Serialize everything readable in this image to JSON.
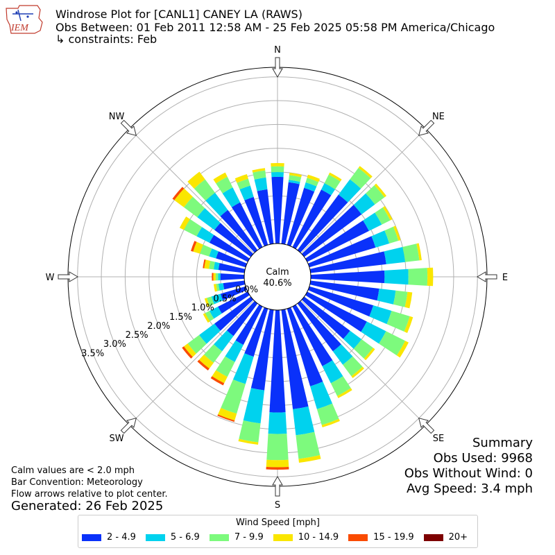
{
  "header": {
    "title": "Windrose Plot for [CANL1] CANEY  LA  (RAWS)",
    "subtitle": "Obs Between: 01 Feb 2011 12:58 AM - 25 Feb 2025 05:58 PM America/Chicago",
    "constraints": "↳ constraints: Feb",
    "logo_text": "IEM"
  },
  "notes": {
    "calm_note": "Calm values are < 2.0 mph",
    "bar_convention": "Bar Convention: Meteorology",
    "flow_arrows": "Flow arrows relative to plot center.",
    "generated": "Generated: 26 Feb 2025"
  },
  "summary": {
    "heading": "Summary",
    "obs_used": "Obs Used: 9968",
    "obs_without_wind": "Obs Without Wind: 0",
    "avg_speed": "Avg Speed: 3.4 mph"
  },
  "legend": {
    "title": "Wind Speed [mph]",
    "items": [
      {
        "label": "2 - 4.9",
        "color": "#0a31fa"
      },
      {
        "label": "5 - 6.9",
        "color": "#00d2ee"
      },
      {
        "label": "7 - 9.9",
        "color": "#7dfa7d"
      },
      {
        "label": "10 - 14.9",
        "color": "#fae600"
      },
      {
        "label": "15 - 19.9",
        "color": "#fa4b00"
      },
      {
        "label": "20+",
        "color": "#7d0000"
      }
    ]
  },
  "chart_data": {
    "type": "windrose",
    "calm_label": "Calm",
    "calm_value": "40.6%",
    "cardinal_labels": [
      "N",
      "NE",
      "E",
      "SE",
      "S",
      "SW",
      "W",
      "NW"
    ],
    "ring_labels": [
      "0.0%",
      "0.5%",
      "1.0%",
      "1.5%",
      "2.0%",
      "2.5%",
      "3.0%",
      "3.5%"
    ],
    "ring_values": [
      0.0,
      0.5,
      1.0,
      1.5,
      2.0,
      2.5,
      3.0,
      3.5
    ],
    "rmax": 3.7,
    "direction_step_deg": 10,
    "speed_bins": [
      "2 - 4.9",
      "5 - 6.9",
      "7 - 9.9",
      "10 - 14.9",
      "15 - 19.9",
      "20+"
    ],
    "directions_deg": [
      0,
      10,
      20,
      30,
      40,
      50,
      60,
      70,
      80,
      90,
      100,
      110,
      120,
      130,
      140,
      150,
      160,
      170,
      180,
      190,
      200,
      210,
      220,
      230,
      240,
      250,
      260,
      270,
      280,
      290,
      300,
      310,
      320,
      330,
      340,
      350
    ],
    "values": [
      [
        1.4,
        0.1,
        0.12,
        0.07,
        0.0,
        0.0
      ],
      [
        1.3,
        0.05,
        0.1,
        0.05,
        0.0,
        0.0
      ],
      [
        1.25,
        0.12,
        0.1,
        0.07,
        0.0,
        0.0
      ],
      [
        1.35,
        0.15,
        0.2,
        0.05,
        0.0,
        0.0
      ],
      [
        1.45,
        0.4,
        0.3,
        0.05,
        0.0,
        0.0
      ],
      [
        1.5,
        0.35,
        0.25,
        0.05,
        0.0,
        0.0
      ],
      [
        1.45,
        0.3,
        0.2,
        0.05,
        0.0,
        0.0
      ],
      [
        1.45,
        0.3,
        0.2,
        0.05,
        0.0,
        0.0
      ],
      [
        1.6,
        0.4,
        0.3,
        0.05,
        0.0,
        0.0
      ],
      [
        1.55,
        0.5,
        0.4,
        0.12,
        0.0,
        0.0
      ],
      [
        1.45,
        0.35,
        0.25,
        0.1,
        0.0,
        0.0
      ],
      [
        1.4,
        0.4,
        0.4,
        0.07,
        0.0,
        0.0
      ],
      [
        1.4,
        0.45,
        0.45,
        0.08,
        0.0,
        0.0
      ],
      [
        1.2,
        0.3,
        0.3,
        0.05,
        0.0,
        0.0
      ],
      [
        1.25,
        0.35,
        0.3,
        0.05,
        0.0,
        0.0
      ],
      [
        1.4,
        0.4,
        0.3,
        0.05,
        0.0,
        0.0
      ],
      [
        1.7,
        0.5,
        0.35,
        0.05,
        0.0,
        0.0
      ],
      [
        2.1,
        0.55,
        0.5,
        0.08,
        0.0,
        0.0
      ],
      [
        2.15,
        0.45,
        0.55,
        0.15,
        0.05,
        0.0
      ],
      [
        1.7,
        0.7,
        0.4,
        0.05,
        0.0,
        0.0
      ],
      [
        1.05,
        0.6,
        0.65,
        0.15,
        0.03,
        0.0
      ],
      [
        0.9,
        0.4,
        0.35,
        0.15,
        0.05,
        0.0
      ],
      [
        0.85,
        0.4,
        0.3,
        0.15,
        0.05,
        0.0
      ],
      [
        0.95,
        0.4,
        0.3,
        0.1,
        0.05,
        0.0
      ],
      [
        0.7,
        0.2,
        0.1,
        0.05,
        0.0,
        0.0
      ],
      [
        0.55,
        0.2,
        0.1,
        0.05,
        0.0,
        0.0
      ],
      [
        0.45,
        0.1,
        0.05,
        0.05,
        0.0,
        0.0
      ],
      [
        0.5,
        0.05,
        0.05,
        0.05,
        0.03,
        0.0
      ],
      [
        0.55,
        0.1,
        0.1,
        0.1,
        0.03,
        0.0
      ],
      [
        0.65,
        0.15,
        0.2,
        0.15,
        0.05,
        0.0
      ],
      [
        0.9,
        0.3,
        0.3,
        0.1,
        0.0,
        0.0
      ],
      [
        0.95,
        0.45,
        0.35,
        0.25,
        0.05,
        0.0
      ],
      [
        1.05,
        0.45,
        0.35,
        0.2,
        0.0,
        0.0
      ],
      [
        1.05,
        0.35,
        0.25,
        0.1,
        0.0,
        0.0
      ],
      [
        1.05,
        0.25,
        0.15,
        0.1,
        0.0,
        0.0
      ],
      [
        1.15,
        0.25,
        0.15,
        0.05,
        0.0,
        0.0
      ]
    ]
  }
}
